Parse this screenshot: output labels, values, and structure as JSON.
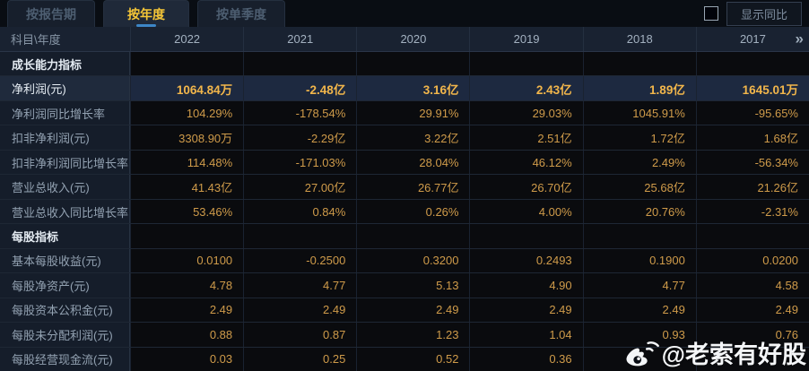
{
  "tabs": [
    {
      "key": "report-period",
      "label": "按报告期",
      "active": false
    },
    {
      "key": "annual",
      "label": "按年度",
      "active": true
    },
    {
      "key": "single-quarter",
      "label": "按单季度",
      "active": false
    }
  ],
  "controls": {
    "show_yoy_label": "显示同比",
    "checkbox_checked": false
  },
  "table": {
    "corner_label": "科目\\年度",
    "years": [
      "2022",
      "2021",
      "2020",
      "2019",
      "2018",
      "2017"
    ],
    "more_years_icon": "»",
    "rows": [
      {
        "label": "成长能力指标",
        "type": "section",
        "values": [
          "",
          "",
          "",
          "",
          "",
          ""
        ]
      },
      {
        "label": "净利润(元)",
        "type": "highlight",
        "values": [
          "1064.84万",
          "-2.48亿",
          "3.16亿",
          "2.43亿",
          "1.89亿",
          "1645.01万"
        ]
      },
      {
        "label": "净利润同比增长率",
        "type": "normal",
        "values": [
          "104.29%",
          "-178.54%",
          "29.91%",
          "29.03%",
          "1045.91%",
          "-95.65%"
        ]
      },
      {
        "label": "扣非净利润(元)",
        "type": "normal",
        "values": [
          "3308.90万",
          "-2.29亿",
          "3.22亿",
          "2.51亿",
          "1.72亿",
          "1.68亿"
        ]
      },
      {
        "label": "扣非净利润同比增长率",
        "type": "normal",
        "values": [
          "114.48%",
          "-171.03%",
          "28.04%",
          "46.12%",
          "2.49%",
          "-56.34%"
        ]
      },
      {
        "label": "营业总收入(元)",
        "type": "normal",
        "values": [
          "41.43亿",
          "27.00亿",
          "26.77亿",
          "26.70亿",
          "25.68亿",
          "21.26亿"
        ]
      },
      {
        "label": "营业总收入同比增长率",
        "type": "normal",
        "values": [
          "53.46%",
          "0.84%",
          "0.26%",
          "4.00%",
          "20.76%",
          "-2.31%"
        ]
      },
      {
        "label": "每股指标",
        "type": "section",
        "values": [
          "",
          "",
          "",
          "",
          "",
          ""
        ]
      },
      {
        "label": "基本每股收益(元)",
        "type": "normal",
        "values": [
          "0.0100",
          "-0.2500",
          "0.3200",
          "0.2493",
          "0.1900",
          "0.0200"
        ]
      },
      {
        "label": "每股净资产(元)",
        "type": "normal",
        "values": [
          "4.78",
          "4.77",
          "5.13",
          "4.90",
          "4.77",
          "4.58"
        ]
      },
      {
        "label": "每股资本公积金(元)",
        "type": "normal",
        "values": [
          "2.49",
          "2.49",
          "2.49",
          "2.49",
          "2.49",
          "2.49"
        ]
      },
      {
        "label": "每股未分配利润(元)",
        "type": "normal",
        "values": [
          "0.88",
          "0.87",
          "1.23",
          "1.04",
          "0.93",
          "0.76"
        ]
      },
      {
        "label": "每股经营现金流(元)",
        "type": "normal",
        "values": [
          "0.03",
          "0.25",
          "0.52",
          "0.36",
          "",
          ""
        ]
      }
    ]
  },
  "watermark": {
    "icon": "weibo-logo",
    "text": "@老索有好股"
  },
  "colors": {
    "background": "#0a0e15",
    "value_gold": "#cf9b4a",
    "highlight_gold": "#f2b64b",
    "active_tab_gold": "#f5c637",
    "highlight_row_bg": "#1d2940",
    "label_column_bg": "#151d2a",
    "header_row_bg": "#192231",
    "tab_underline_blue": "#3d86c6",
    "watermark_white": "#f4f6f8"
  }
}
